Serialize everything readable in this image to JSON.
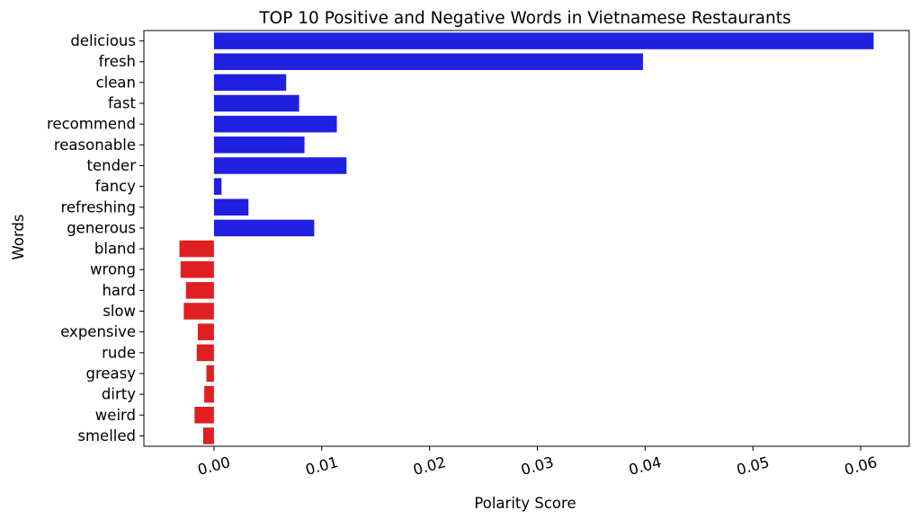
{
  "chart_data": {
    "type": "bar",
    "orientation": "horizontal",
    "title": "TOP 10 Positive and Negative Words in Vietnamese Restaurants",
    "xlabel": "Polarity Score",
    "ylabel": "Words",
    "xlim": [
      -0.0065,
      0.0645
    ],
    "xticks": [
      0.0,
      0.01,
      0.02,
      0.03,
      0.04,
      0.05,
      0.06
    ],
    "xtick_labels": [
      "0.00",
      "0.01",
      "0.02",
      "0.03",
      "0.04",
      "0.05",
      "0.06"
    ],
    "grid": false,
    "categories": [
      "delicious",
      "fresh",
      "clean",
      "fast",
      "recommend",
      "reasonable",
      "tender",
      "fancy",
      "refreshing",
      "generous",
      "bland",
      "wrong",
      "hard",
      "slow",
      "expensive",
      "rude",
      "greasy",
      "dirty",
      "weird",
      "smelled"
    ],
    "values": [
      0.0612,
      0.0398,
      0.0067,
      0.0079,
      0.0114,
      0.0084,
      0.0123,
      0.0007,
      0.0032,
      0.0093,
      -0.0032,
      -0.0031,
      -0.0026,
      -0.0028,
      -0.0015,
      -0.0016,
      -0.0007,
      -0.0009,
      -0.0018,
      -0.001
    ],
    "colors": {
      "positive": "#2020e0",
      "negative": "#e02020"
    }
  }
}
